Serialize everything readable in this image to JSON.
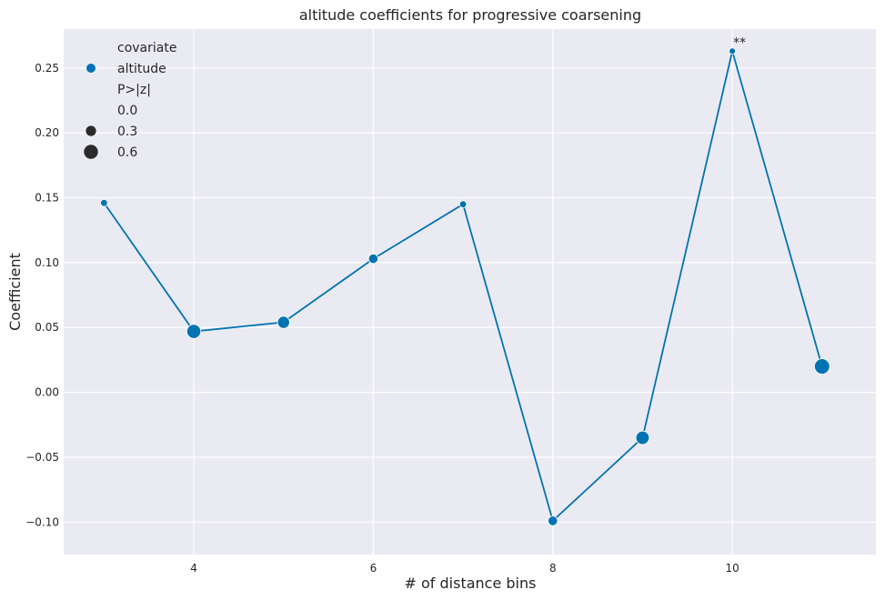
{
  "chart_data": {
    "type": "line",
    "title": "altitude coefficients for progressive coarsening",
    "xlabel": "# of distance bins",
    "ylabel": "Coefficient",
    "xlim": [
      2.55,
      11.6
    ],
    "ylim": [
      -0.125,
      0.28
    ],
    "xticks": [
      4,
      6,
      8,
      10
    ],
    "xtick_labels": [
      "4",
      "6",
      "8",
      "10"
    ],
    "yticks": [
      -0.1,
      -0.05,
      0.0,
      0.05,
      0.1,
      0.15,
      0.2,
      0.25
    ],
    "ytick_labels": [
      "−0.10",
      "−0.05",
      "0.00",
      "0.05",
      "0.10",
      "0.15",
      "0.20",
      "0.25"
    ],
    "grid": true,
    "background": "#eaeaf2",
    "series": [
      {
        "name": "altitude",
        "color": "#0173b2",
        "x": [
          3,
          4,
          5,
          6,
          7,
          8,
          9,
          10,
          11
        ],
        "y": [
          0.146,
          0.047,
          0.054,
          0.103,
          0.145,
          -0.099,
          -0.035,
          0.263,
          0.02
        ],
        "p_values": [
          0.05,
          0.6,
          0.45,
          0.25,
          0.05,
          0.25,
          0.55,
          0.0,
          0.7
        ]
      }
    ],
    "annotations": [
      {
        "x": 10,
        "y": 0.263,
        "text": "**"
      }
    ],
    "legend": {
      "placement": "top-left",
      "hue_title": "covariate",
      "hue_entries": [
        "altitude"
      ],
      "size_title": "P>|z|",
      "size_entries": [
        {
          "label": "0.0",
          "value": 0.0
        },
        {
          "label": "0.3",
          "value": 0.3
        },
        {
          "label": "0.6",
          "value": 0.6
        }
      ]
    }
  }
}
